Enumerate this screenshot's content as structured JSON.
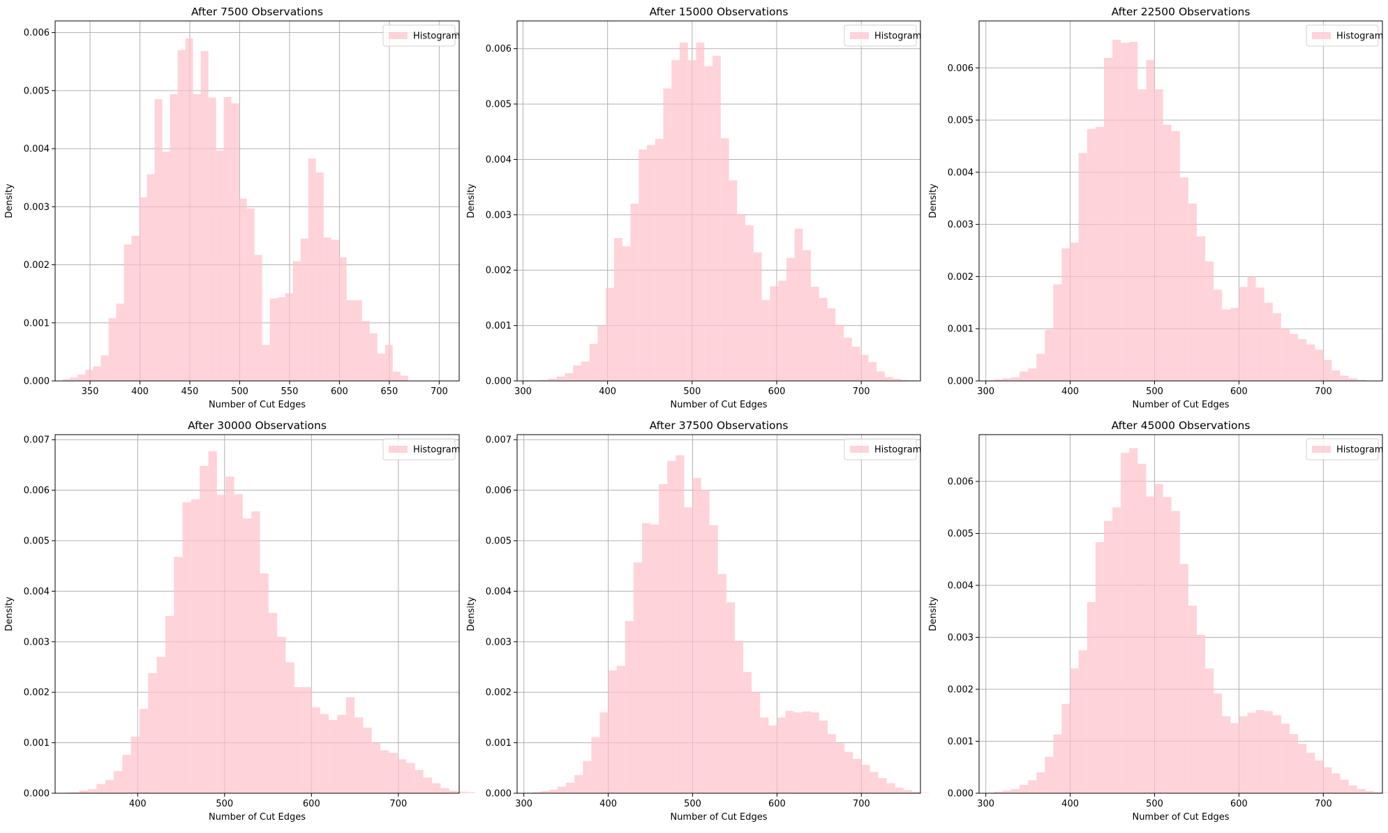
{
  "chart_data": [
    {
      "type": "bar",
      "title": "After 7500 Observations",
      "xlabel": "Number of Cut Edges",
      "ylabel": "Density",
      "xlim": [
        315,
        720
      ],
      "ylim": [
        0,
        0.0062
      ],
      "xticks": [
        350,
        400,
        450,
        500,
        550,
        600,
        650,
        700
      ],
      "yticks": [
        0.0,
        0.001,
        0.002,
        0.003,
        0.004,
        0.005,
        0.006
      ],
      "ytick_labels": [
        "0.000",
        "0.001",
        "0.002",
        "0.003",
        "0.004",
        "0.005",
        "0.006"
      ],
      "legend": "top-right",
      "grid": true,
      "bins": {
        "start": 322.3,
        "width": 7.7
      },
      "series": [
        {
          "name": "Histogram",
          "color": "#ffc0cb",
          "alpha": 0.7,
          "values": [
            3e-05,
            6e-05,
            0.00011,
            0.00019,
            0.00025,
            0.00044,
            0.00108,
            0.00133,
            0.00235,
            0.0025,
            0.00316,
            0.00356,
            0.00485,
            0.00395,
            0.00494,
            0.0057,
            0.0059,
            0.00494,
            0.00568,
            0.00488,
            0.00397,
            0.00489,
            0.00478,
            0.00314,
            0.00297,
            0.00217,
            0.00062,
            0.00142,
            0.00144,
            0.00151,
            0.00206,
            0.00245,
            0.00383,
            0.00359,
            0.00247,
            0.00243,
            0.00213,
            0.00139,
            0.00139,
            0.00103,
            0.00082,
            0.00047,
            0.00062,
            0.00016,
            9e-05
          ]
        }
      ]
    },
    {
      "type": "bar",
      "title": "After 15000 Observations",
      "xlabel": "Number of Cut Edges",
      "ylabel": "Density",
      "xlim": [
        293,
        770
      ],
      "ylim": [
        0,
        0.0065
      ],
      "xticks": [
        300,
        400,
        500,
        600,
        700
      ],
      "yticks": [
        0.0,
        0.001,
        0.002,
        0.003,
        0.004,
        0.005,
        0.006
      ],
      "ytick_labels": [
        "0.000",
        "0.001",
        "0.002",
        "0.003",
        "0.004",
        "0.005",
        "0.006"
      ],
      "legend": "top-right",
      "grid": true,
      "bins": {
        "start": 301,
        "width": 9.7
      },
      "series": [
        {
          "name": "Histogram",
          "color": "#ffc0cb",
          "alpha": 0.7,
          "values": [
            1e-05,
            1e-05,
            2e-05,
            4e-05,
            8e-05,
            0.00014,
            0.00028,
            0.00035,
            0.00067,
            0.001,
            0.00168,
            0.00258,
            0.00243,
            0.0032,
            0.00418,
            0.00426,
            0.00437,
            0.00528,
            0.00579,
            0.00611,
            0.00579,
            0.00611,
            0.00568,
            0.00587,
            0.00438,
            0.00362,
            0.00301,
            0.00281,
            0.00232,
            0.00146,
            0.00171,
            0.00181,
            0.00222,
            0.00275,
            0.00236,
            0.0017,
            0.0015,
            0.00131,
            0.00101,
            0.00078,
            0.00062,
            0.00047,
            0.00034,
            0.00017,
            7e-05,
            4e-05,
            2e-05,
            1e-05
          ]
        }
      ]
    },
    {
      "type": "bar",
      "title": "After 22500 Observations",
      "xlabel": "Number of Cut Edges",
      "ylabel": "Density",
      "xlim": [
        292,
        770
      ],
      "ylim": [
        0,
        0.0069
      ],
      "xticks": [
        300,
        400,
        500,
        600,
        700
      ],
      "yticks": [
        0.0,
        0.001,
        0.002,
        0.003,
        0.004,
        0.005,
        0.006
      ],
      "ytick_labels": [
        "0.000",
        "0.001",
        "0.002",
        "0.003",
        "0.004",
        "0.005",
        "0.006"
      ],
      "legend": "top-right",
      "grid": true,
      "bins": {
        "start": 300,
        "width": 10.0
      },
      "series": [
        {
          "name": "Histogram",
          "color": "#ffc0cb",
          "alpha": 0.7,
          "values": [
            1e-05,
            3e-05,
            5e-05,
            7e-05,
            0.00018,
            0.00024,
            0.00052,
            0.00098,
            0.00185,
            0.00254,
            0.00265,
            0.00437,
            0.00483,
            0.00487,
            0.00619,
            0.00654,
            0.00648,
            0.0065,
            0.00559,
            0.00615,
            0.00559,
            0.00491,
            0.00479,
            0.0039,
            0.0034,
            0.00277,
            0.00229,
            0.00175,
            0.00137,
            0.0014,
            0.0018,
            0.002,
            0.00179,
            0.0015,
            0.0013,
            0.001,
            0.0009,
            0.0008,
            0.0007,
            0.0006,
            0.0004,
            0.0002,
            0.0001,
            5e-05,
            2e-05
          ]
        }
      ]
    },
    {
      "type": "bar",
      "title": "After 30000 Observations",
      "xlabel": "Number of Cut Edges",
      "ylabel": "Density",
      "xlim": [
        305,
        770
      ],
      "ylim": [
        0,
        0.0071
      ],
      "xticks": [
        300,
        400,
        500,
        600,
        700
      ],
      "yticks": [
        0.0,
        0.001,
        0.002,
        0.003,
        0.004,
        0.005,
        0.006,
        0.007
      ],
      "ytick_labels": [
        "0.000",
        "0.001",
        "0.002",
        "0.003",
        "0.004",
        "0.005",
        "0.006",
        "0.007"
      ],
      "legend": "top-right",
      "grid": true,
      "bins": {
        "start": 313,
        "width": 9.9
      },
      "series": [
        {
          "name": "Histogram",
          "color": "#ffc0cb",
          "alpha": 0.7,
          "values": [
            1e-05,
            2e-05,
            5e-05,
            8e-05,
            0.00018,
            0.00026,
            0.00044,
            0.00076,
            0.00112,
            0.00167,
            0.00238,
            0.0027,
            0.00351,
            0.00468,
            0.00576,
            0.00582,
            0.00648,
            0.00677,
            0.00591,
            0.00627,
            0.00592,
            0.00544,
            0.00558,
            0.00435,
            0.00357,
            0.0031,
            0.00259,
            0.0021,
            0.0021,
            0.0017,
            0.00157,
            0.00145,
            0.00155,
            0.0019,
            0.0015,
            0.0013,
            0.001,
            0.00085,
            0.0008,
            0.00067,
            0.0006,
            0.00046,
            0.00031,
            0.0002,
            0.0001,
            5e-05,
            3e-05,
            2e-05
          ]
        }
      ]
    },
    {
      "type": "bar",
      "title": "After 37500 Observations",
      "xlabel": "Number of Cut Edges",
      "ylabel": "Density",
      "xlim": [
        292,
        770
      ],
      "ylim": [
        0,
        0.0071
      ],
      "xticks": [
        300,
        400,
        500,
        600,
        700
      ],
      "yticks": [
        0.0,
        0.001,
        0.002,
        0.003,
        0.004,
        0.005,
        0.006,
        0.007
      ],
      "ytick_labels": [
        "0.000",
        "0.001",
        "0.002",
        "0.003",
        "0.004",
        "0.005",
        "0.006",
        "0.007"
      ],
      "legend": "top-right",
      "grid": true,
      "bins": {
        "start": 300,
        "width": 10.0
      },
      "series": [
        {
          "name": "Histogram",
          "color": "#ffc0cb",
          "alpha": 0.7,
          "values": [
            1e-05,
            2e-05,
            4e-05,
            7e-05,
            0.00013,
            0.00021,
            0.00036,
            0.00064,
            0.00111,
            0.0016,
            0.00243,
            0.00252,
            0.00341,
            0.00457,
            0.00535,
            0.00532,
            0.00612,
            0.00658,
            0.00669,
            0.00566,
            0.00624,
            0.00601,
            0.00531,
            0.00434,
            0.00378,
            0.00302,
            0.0024,
            0.002,
            0.0015,
            0.00134,
            0.0015,
            0.00163,
            0.0016,
            0.00162,
            0.0016,
            0.00144,
            0.00117,
            0.00099,
            0.00082,
            0.00068,
            0.00056,
            0.00042,
            0.0003,
            0.0002,
            0.00011,
            6e-05,
            3e-05,
            1e-05
          ]
        }
      ]
    },
    {
      "type": "bar",
      "title": "After 45000 Observations",
      "xlabel": "Number of Cut Edges",
      "ylabel": "Density",
      "xlim": [
        292,
        770
      ],
      "ylim": [
        0,
        0.0069
      ],
      "xticks": [
        300,
        400,
        500,
        600,
        700
      ],
      "yticks": [
        0.0,
        0.001,
        0.002,
        0.003,
        0.004,
        0.005,
        0.006
      ],
      "ytick_labels": [
        "0.000",
        "0.001",
        "0.002",
        "0.003",
        "0.004",
        "0.005",
        "0.006"
      ],
      "legend": "top-right",
      "grid": true,
      "bins": {
        "start": 300,
        "width": 10.0
      },
      "series": [
        {
          "name": "Histogram",
          "color": "#ffc0cb",
          "alpha": 0.7,
          "values": [
            1e-05,
            3e-05,
            5e-05,
            8e-05,
            0.00016,
            0.00025,
            0.0004,
            0.0007,
            0.00113,
            0.00172,
            0.0024,
            0.00275,
            0.00368,
            0.00483,
            0.00524,
            0.0055,
            0.00655,
            0.00664,
            0.00634,
            0.00571,
            0.00595,
            0.0057,
            0.00543,
            0.00441,
            0.00361,
            0.00305,
            0.0024,
            0.00192,
            0.00148,
            0.00135,
            0.00148,
            0.00155,
            0.0016,
            0.00158,
            0.0015,
            0.00134,
            0.00114,
            0.00095,
            0.00078,
            0.00063,
            0.0005,
            0.00038,
            0.00026,
            0.00015,
            8e-05,
            4e-05,
            2e-05,
            1e-05
          ]
        }
      ]
    }
  ]
}
